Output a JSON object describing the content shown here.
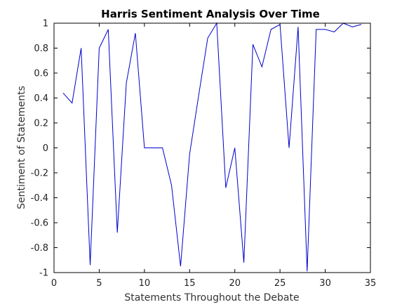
{
  "chart_data": {
    "type": "line",
    "title": "Harris Sentiment Analysis Over Time",
    "xlabel": "Statements Throughout the Debate",
    "ylabel": "Sentiment of Statements",
    "xlim": [
      0,
      35
    ],
    "ylim": [
      -1,
      1
    ],
    "xticks": [
      0,
      5,
      10,
      15,
      20,
      25,
      30,
      35
    ],
    "yticks": [
      -1,
      -0.8,
      -0.6,
      -0.4,
      -0.2,
      0,
      0.2,
      0.4,
      0.6,
      0.8,
      1
    ],
    "xtick_labels": [
      "0",
      "5",
      "10",
      "15",
      "20",
      "25",
      "30",
      "35"
    ],
    "ytick_labels": [
      "-1",
      "-0.8",
      "-0.6",
      "-0.4",
      "-0.2",
      "0",
      "0.2",
      "0.4",
      "0.6",
      "0.8",
      "1"
    ],
    "grid": false,
    "series": [
      {
        "color": "#0000cc",
        "x": [
          1,
          2,
          3,
          4,
          5,
          6,
          7,
          8,
          9,
          10,
          11,
          12,
          13,
          14,
          15,
          16,
          17,
          18,
          19,
          20,
          21,
          22,
          23,
          24,
          25,
          26,
          27,
          28,
          29,
          30,
          31,
          32,
          33,
          34
        ],
        "y": [
          0.44,
          0.36,
          0.8,
          -0.94,
          0.8,
          0.95,
          -0.68,
          0.52,
          0.92,
          0.0,
          0.0,
          0.0,
          -0.3,
          -0.95,
          -0.05,
          0.42,
          0.88,
          1.0,
          -0.32,
          0.0,
          -0.92,
          0.83,
          0.65,
          0.95,
          0.99,
          0.0,
          0.97,
          -0.99,
          0.95,
          0.95,
          0.93,
          1.0,
          0.97,
          0.99
        ]
      }
    ]
  }
}
